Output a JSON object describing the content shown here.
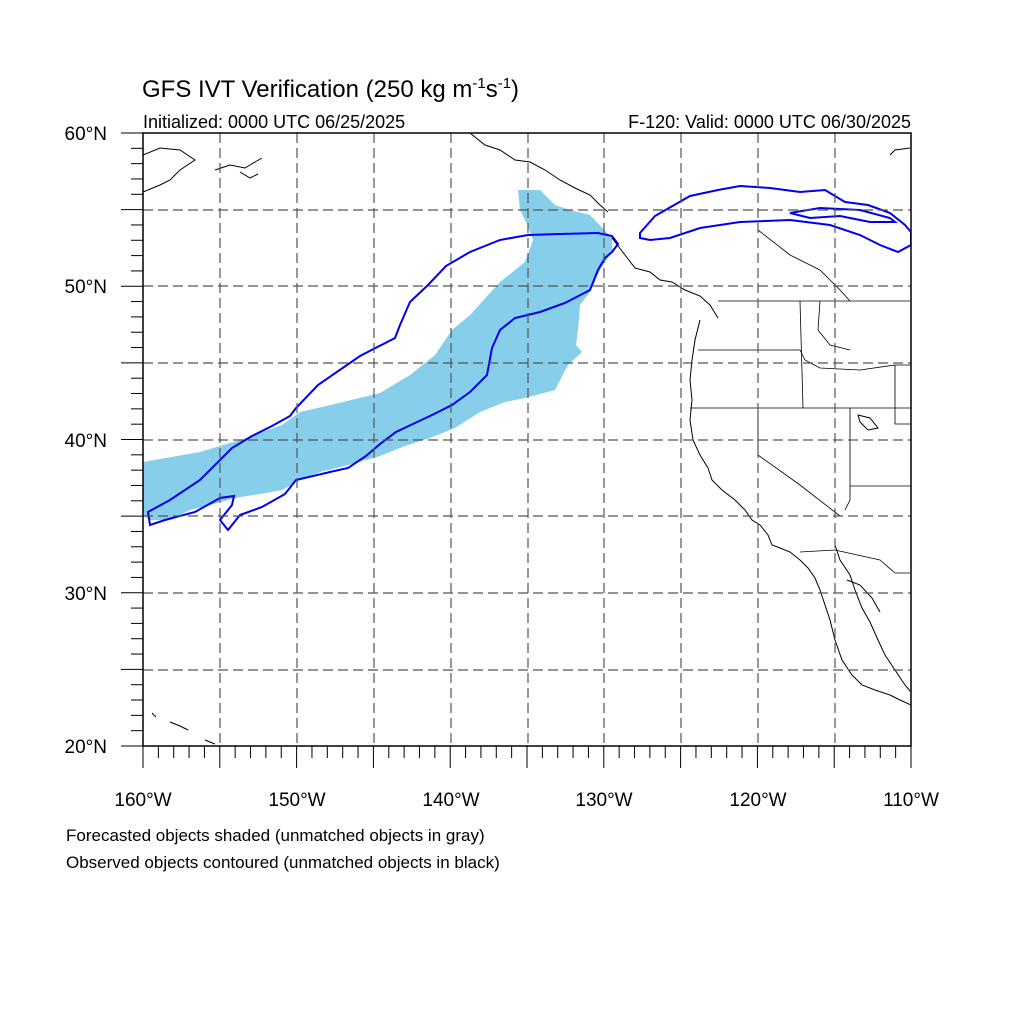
{
  "title": "GFS IVT Verification (250 kg m-1s-1)",
  "title_parts": {
    "main": "GFS IVT Verification (250 kg m",
    "exp1": "-1",
    "mid": "s",
    "exp2": "-1",
    "end": ")"
  },
  "initialized": "Initialized: 0000 UTC 06/25/2025",
  "valid": "F-120: Valid: 0000 UTC 06/30/2025",
  "lat_labels": [
    "60°N",
    "50°N",
    "40°N",
    "30°N",
    "20°N"
  ],
  "lon_labels": [
    "160°W",
    "150°W",
    "140°W",
    "130°W",
    "120°W",
    "110°W"
  ],
  "footnote_1": "Forecasted objects shaded (unmatched objects in gray)",
  "footnote_2": "Observed objects contoured (unmatched objects in black)",
  "colors": {
    "forecast_fill": "#87ceeb",
    "observed_contour": "#0000ee",
    "coastline": "#000000",
    "grid": "#555555"
  },
  "map_extent": {
    "lon": [
      -160,
      -110
    ],
    "lat": [
      20,
      60
    ]
  }
}
